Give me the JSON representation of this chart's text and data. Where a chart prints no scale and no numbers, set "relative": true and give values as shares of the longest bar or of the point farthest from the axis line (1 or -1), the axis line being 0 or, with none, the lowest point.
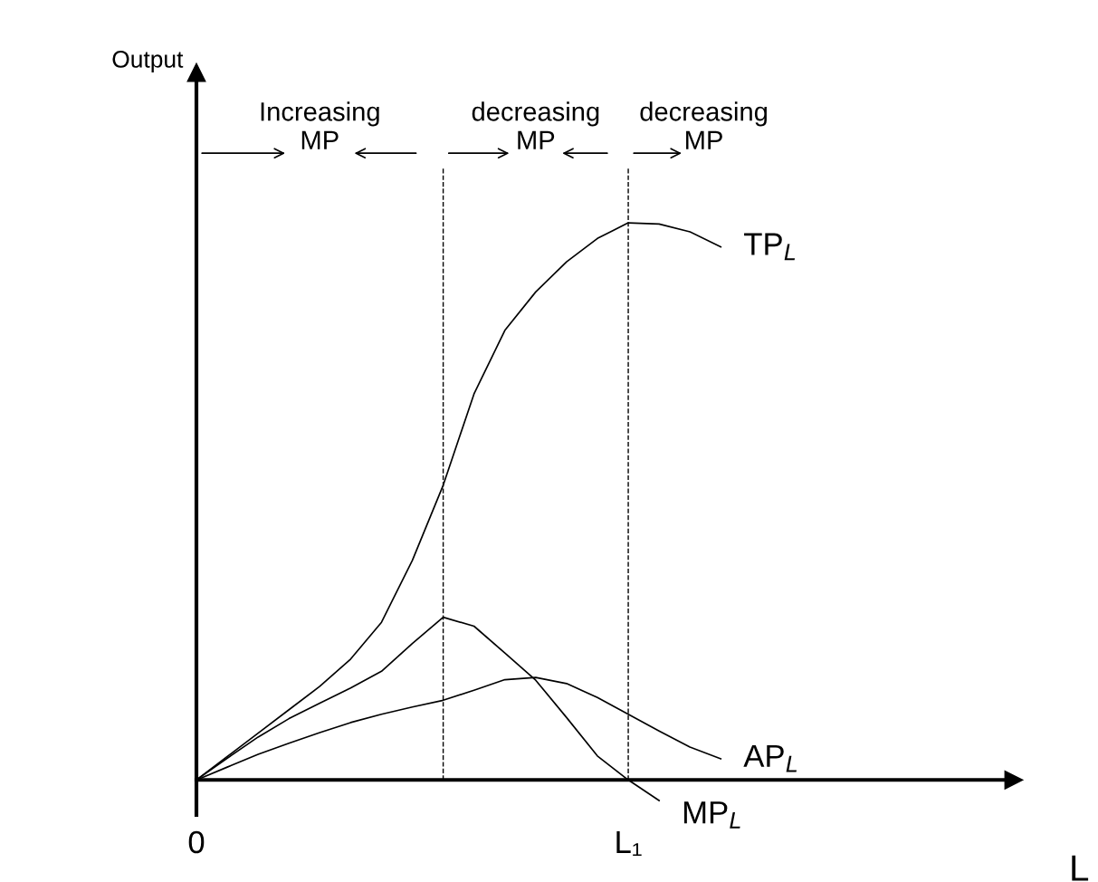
{
  "chart_data": {
    "type": "line",
    "relative": true,
    "xlabel": "L",
    "categories": [
      "0",
      null,
      null,
      null,
      null,
      null,
      null,
      null,
      null,
      null,
      null,
      null,
      null,
      null,
      "L₁",
      null,
      null,
      null,
      null,
      null,
      null,
      null,
      null,
      null,
      null,
      null,
      null
    ],
    "tick_labels": "x",
    "legend": false,
    "marker": "none",
    "line_style": "solid",
    "series": [
      {
        "name": "TP$_{L}$",
        "color": "#000000",
        "values": [
          0,
          0.042,
          0.084,
          0.126,
          0.168,
          0.217,
          0.283,
          0.394,
          0.529,
          0.693,
          0.807,
          0.876,
          0.93,
          0.972,
          1.0,
          0.998,
          0.984,
          0.957,
          null,
          null,
          null,
          null,
          null,
          null,
          null,
          null,
          null
        ]
      },
      {
        "name": "MP$_{L}$",
        "color": "#000000",
        "values": [
          0,
          0.039,
          0.077,
          0.11,
          0.138,
          0.165,
          0.195,
          0.245,
          0.292,
          0.276,
          0.228,
          0.179,
          0.112,
          0.043,
          0,
          -0.037,
          null,
          null,
          null,
          null,
          null,
          null,
          null,
          null,
          null,
          null,
          null
        ]
      },
      {
        "name": "AP$_{L}$",
        "color": "#000000",
        "values": [
          0,
          0.023,
          0.046,
          0.066,
          0.085,
          0.103,
          0.118,
          0.131,
          0.143,
          0.161,
          0.18,
          0.184,
          0.173,
          0.148,
          0.118,
          0.088,
          0.059,
          0.038,
          null,
          null,
          null,
          null,
          null,
          null,
          null,
          null,
          null
        ]
      }
    ],
    "annotations": [
      "Output",
      "Increasing\nMP",
      "decreasing\nMP",
      "decreasing\nMP"
    ]
  }
}
